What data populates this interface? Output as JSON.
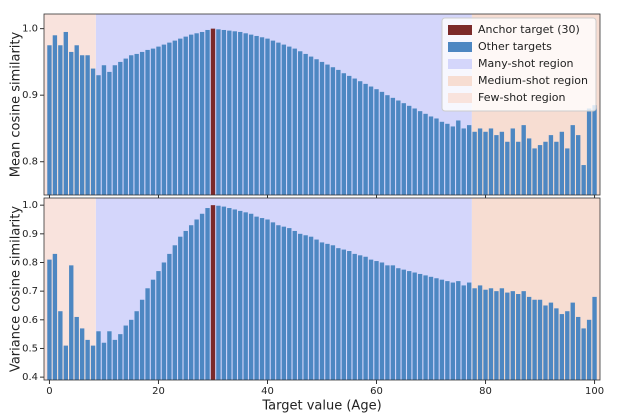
{
  "chart_data": [
    {
      "type": "bar",
      "y_label": "Mean cosine similarity",
      "x": [
        0,
        1,
        2,
        3,
        4,
        5,
        6,
        7,
        8,
        9,
        10,
        11,
        12,
        13,
        14,
        15,
        16,
        17,
        18,
        19,
        20,
        21,
        22,
        23,
        24,
        25,
        26,
        27,
        28,
        29,
        30,
        31,
        32,
        33,
        34,
        35,
        36,
        37,
        38,
        39,
        40,
        41,
        42,
        43,
        44,
        45,
        46,
        47,
        48,
        49,
        50,
        51,
        52,
        53,
        54,
        55,
        56,
        57,
        58,
        59,
        60,
        61,
        62,
        63,
        64,
        65,
        66,
        67,
        68,
        69,
        70,
        71,
        72,
        73,
        74,
        75,
        76,
        77,
        78,
        79,
        80,
        81,
        82,
        83,
        84,
        85,
        86,
        87,
        88,
        89,
        90,
        91,
        92,
        93,
        94,
        95,
        96,
        97,
        98,
        99,
        100
      ],
      "series": [
        {
          "name": "Anchor target (30)",
          "color": "#7b2a2a",
          "x": [
            30
          ],
          "values": [
            1.0
          ]
        },
        {
          "name": "Other targets",
          "color": "#4d87c2",
          "values": [
            0.975,
            0.99,
            0.975,
            0.995,
            0.965,
            0.975,
            0.96,
            0.96,
            0.94,
            0.93,
            0.945,
            0.935,
            0.945,
            0.95,
            0.955,
            0.96,
            0.962,
            0.965,
            0.968,
            0.97,
            0.973,
            0.976,
            0.979,
            0.982,
            0.985,
            0.988,
            0.991,
            0.993,
            0.995,
            0.998,
            null,
            0.999,
            0.998,
            0.997,
            0.996,
            0.995,
            0.993,
            0.991,
            0.989,
            0.987,
            0.985,
            0.982,
            0.979,
            0.976,
            0.973,
            0.97,
            0.966,
            0.962,
            0.958,
            0.954,
            0.95,
            0.946,
            0.942,
            0.938,
            0.933,
            0.929,
            0.925,
            0.921,
            0.917,
            0.913,
            0.909,
            0.905,
            0.9,
            0.896,
            0.892,
            0.888,
            0.884,
            0.88,
            0.876,
            0.872,
            0.868,
            0.865,
            0.86,
            0.857,
            0.853,
            0.862,
            0.85,
            0.855,
            0.845,
            0.85,
            0.845,
            0.85,
            0.84,
            0.845,
            0.83,
            0.85,
            0.83,
            0.855,
            0.835,
            0.82,
            0.825,
            0.83,
            0.84,
            0.83,
            0.845,
            0.82,
            0.855,
            0.84,
            0.795,
            0.88,
            0.885
          ]
        }
      ],
      "regions": [
        {
          "name": "Many-shot region",
          "color": "#d4d6fb",
          "range": [
            8.5,
            77.5
          ]
        },
        {
          "name": "Medium-shot region",
          "color": "#f7ddd2",
          "range": [
            77.5,
            101
          ]
        },
        {
          "name": "Few-shot region",
          "color": "#f9e3dd",
          "range": [
            -1,
            8.5
          ]
        }
      ],
      "xlim": [
        -1,
        101
      ],
      "xticks": [
        0,
        20,
        40,
        60,
        80,
        100
      ],
      "ylim": [
        0.75,
        1.022
      ],
      "yticks": [
        0.8,
        0.9,
        {
          "value": 1,
          "label": "1.0"
        }
      ],
      "legend": "upper right"
    },
    {
      "type": "bar",
      "y_label": "Variance cosine similarity",
      "x_label": "Target value (Age)",
      "x": [
        0,
        1,
        2,
        3,
        4,
        5,
        6,
        7,
        8,
        9,
        10,
        11,
        12,
        13,
        14,
        15,
        16,
        17,
        18,
        19,
        20,
        21,
        22,
        23,
        24,
        25,
        26,
        27,
        28,
        29,
        30,
        31,
        32,
        33,
        34,
        35,
        36,
        37,
        38,
        39,
        40,
        41,
        42,
        43,
        44,
        45,
        46,
        47,
        48,
        49,
        50,
        51,
        52,
        53,
        54,
        55,
        56,
        57,
        58,
        59,
        60,
        61,
        62,
        63,
        64,
        65,
        66,
        67,
        68,
        69,
        70,
        71,
        72,
        73,
        74,
        75,
        76,
        77,
        78,
        79,
        80,
        81,
        82,
        83,
        84,
        85,
        86,
        87,
        88,
        89,
        90,
        91,
        92,
        93,
        94,
        95,
        96,
        97,
        98,
        99,
        100
      ],
      "series": [
        {
          "color": "#7b2a2a",
          "x": [
            30
          ],
          "values": [
            1.0
          ]
        },
        {
          "color": "#4d87c2",
          "values": [
            0.81,
            0.83,
            0.63,
            0.51,
            0.79,
            0.61,
            0.57,
            0.53,
            0.51,
            0.56,
            0.52,
            0.56,
            0.53,
            0.55,
            0.58,
            0.6,
            0.63,
            0.67,
            0.71,
            0.74,
            0.77,
            0.8,
            0.83,
            0.86,
            0.89,
            0.91,
            0.93,
            0.95,
            0.97,
            0.99,
            null,
            0.998,
            0.995,
            0.99,
            0.985,
            0.98,
            0.975,
            0.97,
            0.96,
            0.955,
            0.95,
            0.94,
            0.93,
            0.925,
            0.92,
            0.91,
            0.9,
            0.895,
            0.89,
            0.88,
            0.87,
            0.865,
            0.86,
            0.85,
            0.845,
            0.84,
            0.83,
            0.825,
            0.82,
            0.81,
            0.805,
            0.8,
            0.79,
            0.79,
            0.78,
            0.775,
            0.77,
            0.765,
            0.76,
            0.755,
            0.75,
            0.745,
            0.74,
            0.735,
            0.73,
            0.735,
            0.72,
            0.73,
            0.71,
            0.72,
            0.705,
            0.71,
            0.7,
            0.71,
            0.695,
            0.7,
            0.69,
            0.7,
            0.68,
            0.67,
            0.67,
            0.65,
            0.66,
            0.64,
            0.62,
            0.63,
            0.66,
            0.61,
            0.57,
            0.6,
            0.68
          ]
        }
      ],
      "regions": [
        {
          "color": "#d4d6fb",
          "range": [
            8.5,
            77.5
          ]
        },
        {
          "color": "#f7ddd2",
          "range": [
            77.5,
            101
          ]
        },
        {
          "color": "#f9e3dd",
          "range": [
            -1,
            8.5
          ]
        }
      ],
      "xlim": [
        -1,
        101
      ],
      "xticks": [
        0,
        20,
        40,
        60,
        80,
        100
      ],
      "ylim": [
        0.39,
        1.025
      ],
      "yticks": [
        0.4,
        0.5,
        0.6,
        0.7,
        0.8,
        0.9,
        {
          "value": 1,
          "label": "1.0"
        }
      ]
    }
  ]
}
